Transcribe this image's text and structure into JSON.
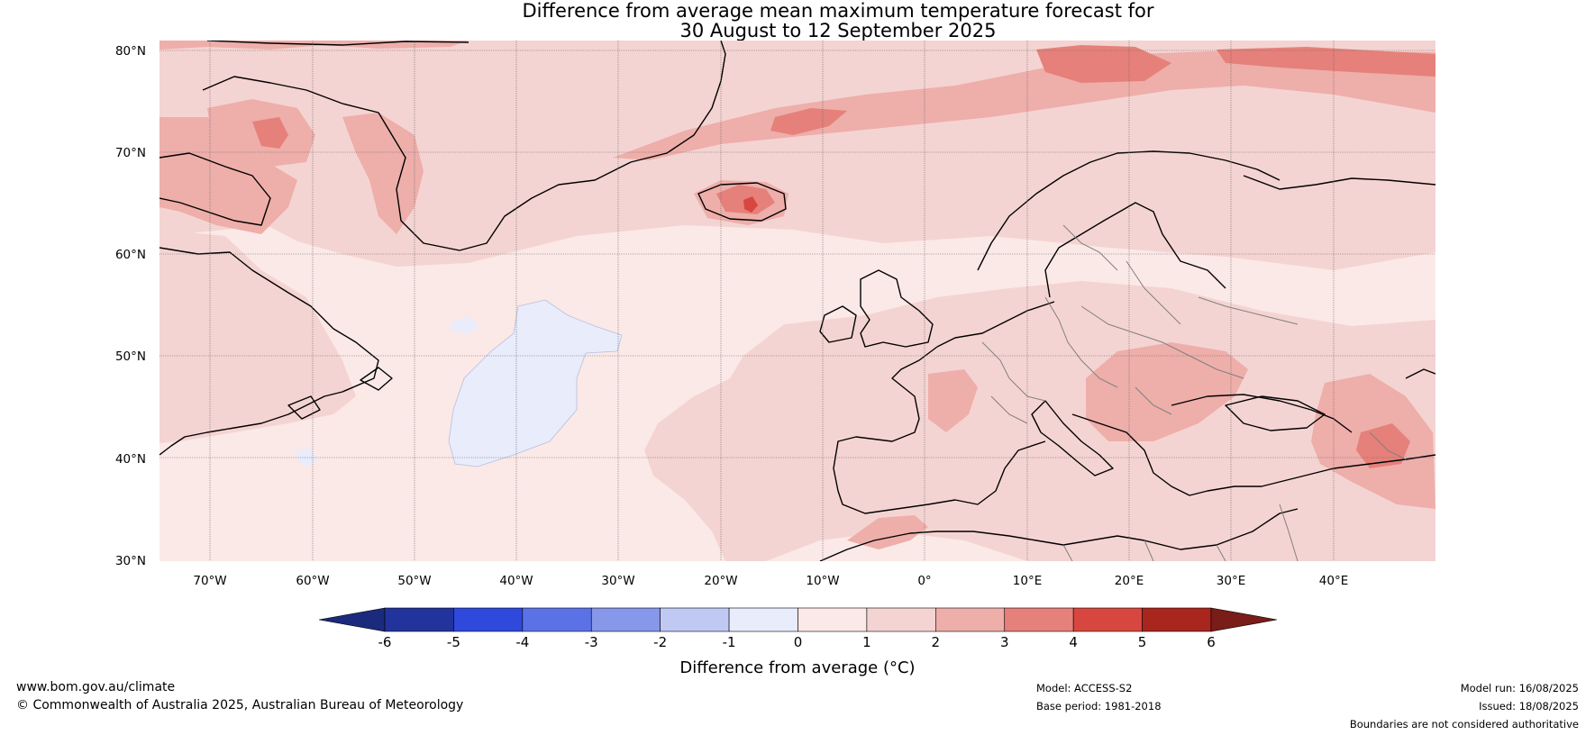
{
  "title": {
    "line1": "Difference from average mean maximum temperature forecast for",
    "line2": "30 August to 12 September 2025"
  },
  "map": {
    "lat_labels": [
      "80°N",
      "70°N",
      "60°N",
      "50°N",
      "40°N",
      "30°N"
    ],
    "lon_labels": [
      "70°W",
      "60°W",
      "50°W",
      "40°W",
      "30°W",
      "20°W",
      "10°W",
      "0°",
      "10°E",
      "20°E",
      "30°E",
      "40°E"
    ],
    "lat_range": [
      30,
      81
    ],
    "lon_range": [
      -75,
      50
    ]
  },
  "colorbar": {
    "label": "Difference from average (°C)",
    "ticks": [
      "-6",
      "-5",
      "-4",
      "-3",
      "-2",
      "-1",
      "0",
      "1",
      "2",
      "3",
      "4",
      "5",
      "6"
    ],
    "colors": [
      "#23339c",
      "#2e49dc",
      "#5b72e6",
      "#8797ea",
      "#c0c8f4",
      "#e8ecfb",
      "#fbe9e7",
      "#f4d4d2",
      "#eeaeaa",
      "#e6807a",
      "#d8473f",
      "#a8261e"
    ],
    "under_color": "#1b2a7d",
    "over_color": "#7a1c17"
  },
  "footer": {
    "website": "www.bom.gov.au/climate",
    "copyright": "© Commonwealth of Australia 2025, Australian Bureau of Meteorology",
    "model": "Model: ACCESS-S2",
    "base_period": "Base period: 1981-2018",
    "model_run": "Model run: 16/08/2025",
    "issued": "Issued: 18/08/2025",
    "disclaimer": "Boundaries are not considered authoritative"
  }
}
